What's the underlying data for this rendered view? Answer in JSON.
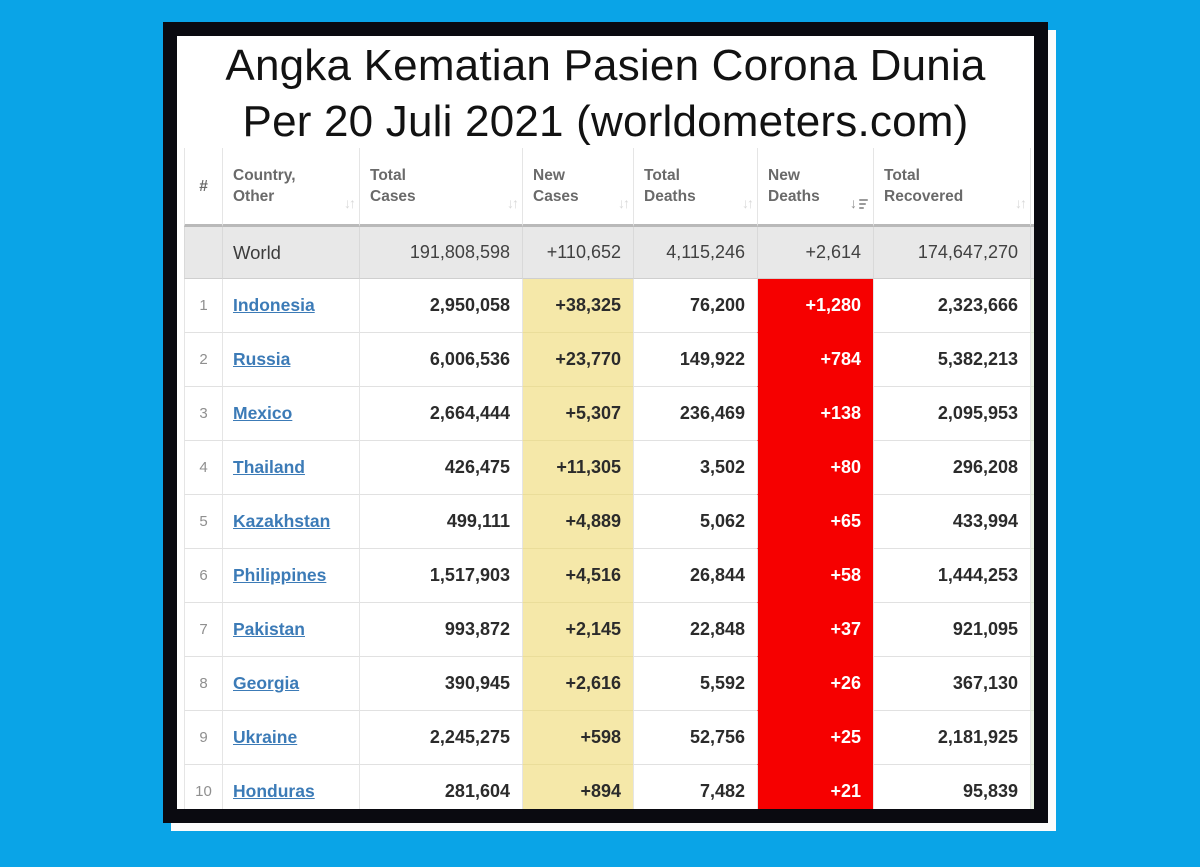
{
  "title": {
    "line1": "Angka Kematian Pasien Corona Dunia",
    "line2": "Per 20 Juli 2021 (worldometers.com)"
  },
  "colors": {
    "background_cyan": "#0aa4e7",
    "frame_black": "#0a0a10",
    "panel_white": "#ffffff",
    "new_cases_yellow": "#f5e8a9",
    "new_deaths_red": "#f60000",
    "country_link_blue": "#3c7bb7",
    "world_row_gray": "#e8e8e8",
    "overflow_column_green": "#ecf4e6"
  },
  "table": {
    "columns": [
      {
        "id": "rank",
        "lines": [
          "#"
        ],
        "sort": "none"
      },
      {
        "id": "country",
        "lines": [
          "Country,",
          "Other"
        ],
        "sort": "unsorted"
      },
      {
        "id": "total_cases",
        "lines": [
          "Total",
          "Cases"
        ],
        "sort": "unsorted"
      },
      {
        "id": "new_cases",
        "lines": [
          "New",
          "Cases"
        ],
        "sort": "unsorted"
      },
      {
        "id": "total_deaths",
        "lines": [
          "Total",
          "Deaths"
        ],
        "sort": "unsorted"
      },
      {
        "id": "new_deaths",
        "lines": [
          "New",
          "Deaths"
        ],
        "sort": "sorted-desc"
      },
      {
        "id": "total_recovered",
        "lines": [
          "Total",
          "Recovered"
        ],
        "sort": "unsorted"
      },
      {
        "id": "overflow",
        "lines": [],
        "sort": "none"
      }
    ],
    "world_row": {
      "label": "World",
      "total_cases": "191,808,598",
      "new_cases": "+110,652",
      "total_deaths": "4,115,246",
      "new_deaths": "+2,614",
      "total_recovered": "174,647,270"
    },
    "rows": [
      {
        "rank": "1",
        "country": "Indonesia",
        "total_cases": "2,950,058",
        "new_cases": "+38,325",
        "total_deaths": "76,200",
        "new_deaths": "+1,280",
        "total_recovered": "2,323,666"
      },
      {
        "rank": "2",
        "country": "Russia",
        "total_cases": "6,006,536",
        "new_cases": "+23,770",
        "total_deaths": "149,922",
        "new_deaths": "+784",
        "total_recovered": "5,382,213"
      },
      {
        "rank": "3",
        "country": "Mexico",
        "total_cases": "2,664,444",
        "new_cases": "+5,307",
        "total_deaths": "236,469",
        "new_deaths": "+138",
        "total_recovered": "2,095,953"
      },
      {
        "rank": "4",
        "country": "Thailand",
        "total_cases": "426,475",
        "new_cases": "+11,305",
        "total_deaths": "3,502",
        "new_deaths": "+80",
        "total_recovered": "296,208"
      },
      {
        "rank": "5",
        "country": "Kazakhstan",
        "total_cases": "499,111",
        "new_cases": "+4,889",
        "total_deaths": "5,062",
        "new_deaths": "+65",
        "total_recovered": "433,994"
      },
      {
        "rank": "6",
        "country": "Philippines",
        "total_cases": "1,517,903",
        "new_cases": "+4,516",
        "total_deaths": "26,844",
        "new_deaths": "+58",
        "total_recovered": "1,444,253"
      },
      {
        "rank": "7",
        "country": "Pakistan",
        "total_cases": "993,872",
        "new_cases": "+2,145",
        "total_deaths": "22,848",
        "new_deaths": "+37",
        "total_recovered": "921,095"
      },
      {
        "rank": "8",
        "country": "Georgia",
        "total_cases": "390,945",
        "new_cases": "+2,616",
        "total_deaths": "5,592",
        "new_deaths": "+26",
        "total_recovered": "367,130"
      },
      {
        "rank": "9",
        "country": "Ukraine",
        "total_cases": "2,245,275",
        "new_cases": "+598",
        "total_deaths": "52,756",
        "new_deaths": "+25",
        "total_recovered": "2,181,925"
      },
      {
        "rank": "10",
        "country": "Honduras",
        "total_cases": "281,604",
        "new_cases": "+894",
        "total_deaths": "7,482",
        "new_deaths": "+21",
        "total_recovered": "95,839"
      }
    ]
  }
}
